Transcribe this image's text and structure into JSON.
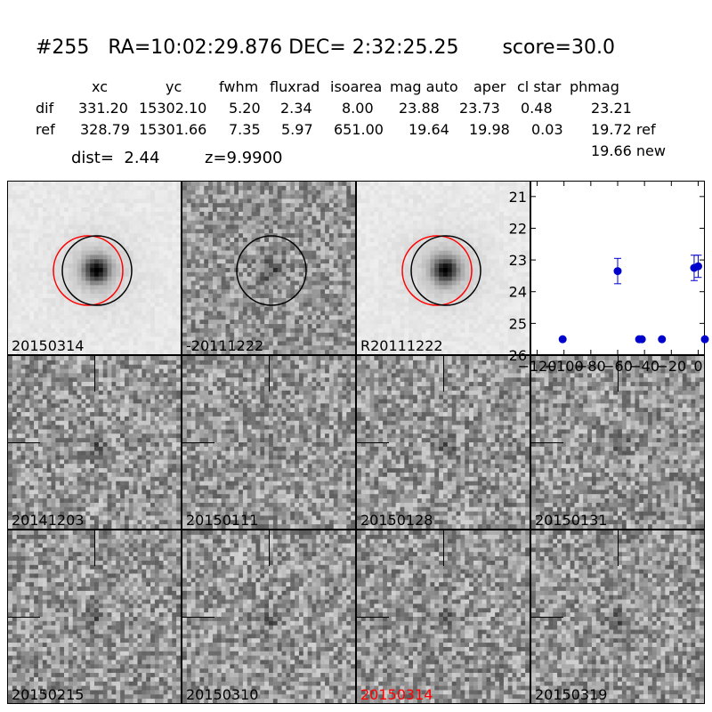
{
  "header": {
    "title": "#255   RA=10:02:29.876 DEC= 2:32:25.25       score=30.0"
  },
  "table": {
    "columns": [
      "xc",
      "yc",
      "fwhm",
      "fluxrad",
      "isoarea",
      "mag auto",
      "aper",
      "cl star",
      "phmag"
    ],
    "rows": [
      {
        "label": "dif",
        "values": [
          "331.20",
          "15302.10",
          "5.20",
          "2.34",
          "8.00",
          "23.88",
          "23.73",
          "0.48",
          "23.21"
        ]
      },
      {
        "label": "ref",
        "values": [
          "328.79",
          "15301.66",
          "7.35",
          "5.97",
          "651.00",
          "19.64",
          "19.98",
          "0.03",
          "19.72 ref"
        ]
      }
    ],
    "extra_phmag": "19.66 new"
  },
  "info": {
    "dist": "dist=  2.44",
    "z": "z=9.9900"
  },
  "panels": [
    {
      "label": "20150314",
      "type": "star-circles",
      "seed": 11,
      "label_color": "#000000"
    },
    {
      "label": "-20111222",
      "type": "diff-circle",
      "seed": 23,
      "label_color": "#000000"
    },
    {
      "label": "R20111222",
      "type": "star-circles",
      "seed": 31,
      "label_color": "#000000"
    },
    {
      "label": "20141203",
      "type": "noise-ticks",
      "seed": 41,
      "label_color": "#000000"
    },
    {
      "label": "20150111",
      "type": "noise-ticks",
      "seed": 53,
      "label_color": "#000000"
    },
    {
      "label": "20150128",
      "type": "noise-ticks",
      "seed": 61,
      "label_color": "#000000"
    },
    {
      "label": "20150131",
      "type": "noise-ticks",
      "seed": 71,
      "label_color": "#000000"
    },
    {
      "label": "20150215",
      "type": "noise-ticks",
      "seed": 83,
      "label_color": "#000000"
    },
    {
      "label": "20150310",
      "type": "noise-ticks",
      "seed": 97,
      "label_color": "#000000"
    },
    {
      "label": "20150314",
      "type": "noise-ticks",
      "seed": 101,
      "label_color": "#ff0000"
    },
    {
      "label": "20150319",
      "type": "noise-ticks",
      "seed": 113,
      "label_color": "#000000"
    }
  ],
  "chart_data": {
    "type": "scatter",
    "title": "",
    "xlabel": "",
    "ylabel": "",
    "xlim": [
      -125,
      5
    ],
    "ylim": [
      26,
      20.5
    ],
    "x_ticks": [
      "-120",
      "-100",
      "-80",
      "-60",
      "-40",
      "-20",
      "0"
    ],
    "x_tick_values": [
      -120,
      -100,
      -80,
      -60,
      -40,
      -20,
      0
    ],
    "y_ticks": [
      "21",
      "22",
      "23",
      "24",
      "25",
      "26"
    ],
    "y_tick_values": [
      21,
      22,
      23,
      24,
      25,
      26
    ],
    "y_inverted": true,
    "marker_color": "#0000cc",
    "points": [
      {
        "x": -101,
        "y": 25.5,
        "err": null
      },
      {
        "x": -60,
        "y": 23.35,
        "err": 0.4
      },
      {
        "x": -44,
        "y": 25.5,
        "err": null
      },
      {
        "x": -42,
        "y": 25.5,
        "err": null
      },
      {
        "x": -27,
        "y": 25.5,
        "err": null
      },
      {
        "x": -3,
        "y": 23.25,
        "err": 0.4
      },
      {
        "x": 0,
        "y": 23.2,
        "err": 0.35
      },
      {
        "x": 5,
        "y": 25.5,
        "err": null
      }
    ]
  }
}
